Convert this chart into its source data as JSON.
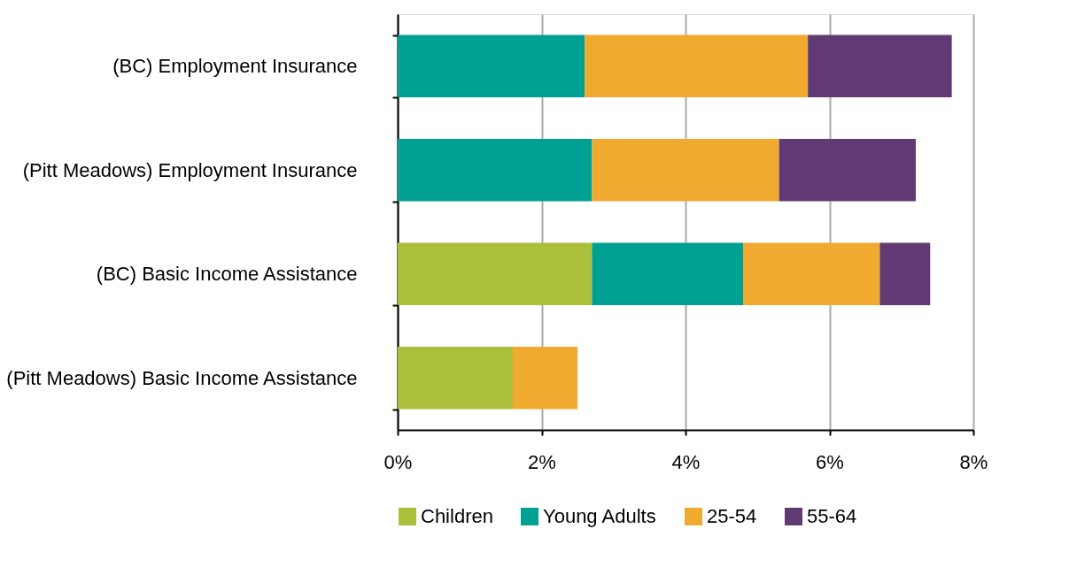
{
  "chart_data": {
    "type": "bar",
    "orientation": "horizontal",
    "stacked": true,
    "categories": [
      "(BC) Employment Insurance",
      "(Pitt Meadows) Employment Insurance",
      "(BC) Basic Income Assistance",
      "(Pitt Meadows) Basic Income Assistance"
    ],
    "series": [
      {
        "name": "Children",
        "color": "#abbf3a",
        "values": [
          null,
          null,
          2.7,
          1.6
        ]
      },
      {
        "name": "Young Adults",
        "color": "#00a092",
        "values": [
          2.6,
          2.7,
          2.1,
          null
        ]
      },
      {
        "name": "25-54",
        "color": "#efaa2f",
        "values": [
          3.1,
          2.6,
          1.9,
          0.9
        ]
      },
      {
        "name": "55-64",
        "color": "#623a73",
        "values": [
          2.0,
          1.9,
          0.7,
          null
        ]
      }
    ],
    "xlim": [
      0,
      8
    ],
    "xticks": [
      {
        "value": 0,
        "label": "0%"
      },
      {
        "value": 2,
        "label": "2%"
      },
      {
        "value": 4,
        "label": "4%"
      },
      {
        "value": 6,
        "label": "6%"
      },
      {
        "value": 8,
        "label": "8%"
      }
    ],
    "grid": "x",
    "legend": "bottom"
  }
}
